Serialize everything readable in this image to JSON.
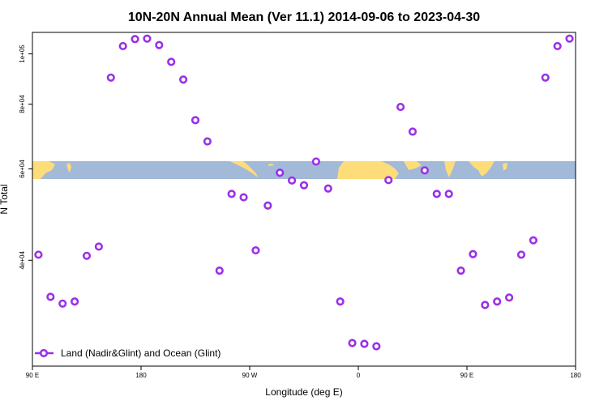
{
  "chart_data": {
    "type": "scatter",
    "title": "10N-20N Annual Mean (Ver 11.1)   2014-09-06 to 2023-04-30",
    "xlabel": "Longitude (deg E)",
    "ylabel": "N Total",
    "x_ticks": [
      {
        "value": 90,
        "label": "90 E"
      },
      {
        "value": 180,
        "label": "180"
      },
      {
        "value": 270,
        "label": "90 W"
      },
      {
        "value": 360,
        "label": "0"
      },
      {
        "value": 450,
        "label": "90 E"
      },
      {
        "value": 540,
        "label": "180"
      }
    ],
    "y_ticks": [
      {
        "value": 40000,
        "label": "4e+04"
      },
      {
        "value": 60000,
        "label": "6e+04"
      },
      {
        "value": 80000,
        "label": "8e+04"
      },
      {
        "value": 100000,
        "label": "1e+05"
      }
    ],
    "xlim": [
      90,
      540
    ],
    "ylim": [
      25000,
      110000
    ],
    "log_y": true,
    "series": [
      {
        "name": "Land (Nadir&Glint) and Ocean (Glint)",
        "color": "#9b30e8",
        "x": [
          95,
          105,
          115,
          125,
          135,
          145,
          155,
          165,
          175,
          185,
          195,
          205,
          215,
          225,
          235,
          245,
          255,
          265,
          275,
          285,
          295,
          305,
          315,
          325,
          335,
          345,
          355,
          365,
          375,
          385,
          395,
          405,
          415,
          425,
          435,
          445,
          455,
          465,
          475,
          485,
          495,
          505,
          515,
          525,
          535
        ],
        "y": [
          41000,
          34000,
          33000,
          33300,
          40800,
          42500,
          90000,
          103500,
          106800,
          107000,
          104000,
          96500,
          89200,
          74500,
          67800,
          38200,
          53700,
          52900,
          41800,
          51000,
          59000,
          57000,
          55800,
          62000,
          55000,
          33300,
          27700,
          27600,
          27300,
          57100,
          79000,
          70800,
          59600,
          53700,
          53700,
          38200,
          41100,
          32800,
          33300,
          33900,
          41000,
          43700,
          90000,
          103500,
          107000
        ]
      }
    ],
    "legend_position": "bottom-left"
  }
}
